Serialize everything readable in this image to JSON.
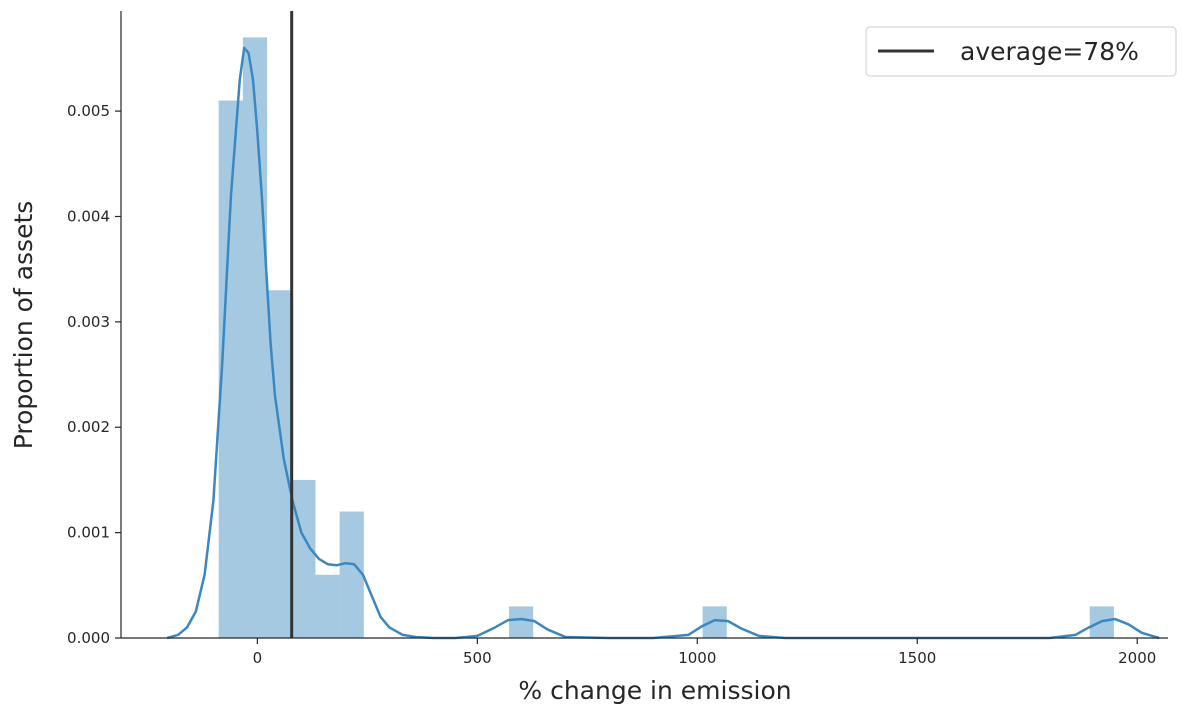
{
  "chart_data": {
    "type": "bar",
    "title": "",
    "xlabel": "% change in emission",
    "ylabel": "Proportion of assets",
    "xlim": [
      -310,
      2070
    ],
    "ylim": [
      0,
      0.00595
    ],
    "grid": false,
    "legend_placement": "top-right",
    "xticks": [
      0,
      500,
      1000,
      1500,
      2000
    ],
    "xtick_labels": [
      "0",
      "500",
      "1000",
      "1500",
      "2000"
    ],
    "yticks": [
      0.0,
      0.001,
      0.002,
      0.003,
      0.004,
      0.005
    ],
    "ytick_labels": [
      "0.000",
      "0.001",
      "0.002",
      "0.003",
      "0.004",
      "0.005"
    ],
    "histogram": {
      "name": "",
      "bin_width": 55,
      "bins": [
        {
          "x0": -88,
          "x1": -33,
          "value": 0.0051
        },
        {
          "x0": -33,
          "x1": 22,
          "value": 0.0057
        },
        {
          "x0": 22,
          "x1": 77,
          "value": 0.0033
        },
        {
          "x0": 77,
          "x1": 132,
          "value": 0.0015
        },
        {
          "x0": 132,
          "x1": 187,
          "value": 0.0006
        },
        {
          "x0": 187,
          "x1": 242,
          "value": 0.0012
        },
        {
          "x0": 572,
          "x1": 627,
          "value": 0.0003
        },
        {
          "x0": 1012,
          "x1": 1067,
          "value": 0.0003
        },
        {
          "x0": 1892,
          "x1": 1947,
          "value": 0.0003
        }
      ]
    },
    "kde": {
      "x": [
        -205,
        -180,
        -160,
        -140,
        -120,
        -100,
        -80,
        -60,
        -40,
        -30,
        -20,
        -10,
        0,
        10,
        20,
        30,
        40,
        60,
        80,
        100,
        120,
        140,
        160,
        180,
        200,
        220,
        240,
        260,
        280,
        300,
        330,
        360,
        400,
        450,
        500,
        540,
        570,
        600,
        630,
        660,
        700,
        800,
        900,
        980,
        1010,
        1040,
        1070,
        1100,
        1140,
        1200,
        1400,
        1600,
        1800,
        1860,
        1890,
        1920,
        1950,
        1980,
        2010,
        2050
      ],
      "y": [
        0.0,
        3e-05,
        0.0001,
        0.00025,
        0.0006,
        0.0013,
        0.0026,
        0.0042,
        0.0053,
        0.0056,
        0.00555,
        0.0053,
        0.0048,
        0.0042,
        0.0035,
        0.0028,
        0.0023,
        0.0017,
        0.0013,
        0.001,
        0.00085,
        0.00075,
        0.0007,
        0.00069,
        0.00071,
        0.0007,
        0.0006,
        0.0004,
        0.0002,
        0.0001,
        3e-05,
        1e-05,
        0.0,
        0.0,
        2e-05,
        0.0001,
        0.00017,
        0.00018,
        0.00016,
        8e-05,
        1e-05,
        0.0,
        0.0,
        3e-05,
        0.00011,
        0.00017,
        0.00016,
        9e-05,
        2e-05,
        0.0,
        0.0,
        0.0,
        0.0,
        3e-05,
        0.0001,
        0.00016,
        0.00018,
        0.00013,
        5e-05,
        0.0
      ]
    },
    "average_line": {
      "x": 78,
      "label": "average=78%"
    },
    "colors": {
      "bar_fill": "#1f77b4",
      "bar_opacity": 0.4,
      "kde_line": "#3a88c2",
      "average_line": "#333333",
      "axis": "#262626"
    }
  }
}
